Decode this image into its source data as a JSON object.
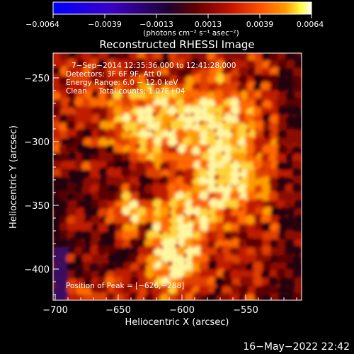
{
  "colorbar": {
    "ticks": [
      "−0.0064",
      "−0.0039",
      "−0.0013",
      "0.0013",
      "0.0039",
      "0.0064"
    ],
    "unit_label": "(photons cm⁻² s⁻¹ asec⁻²)",
    "colors": [
      "#0000ff",
      "#3a00c8",
      "#200030",
      "#600000",
      "#c01000",
      "#ff5000",
      "#ff9a00",
      "#ffff40",
      "#ffffff"
    ]
  },
  "image": {
    "title": "Reconstructed RHESSI Image",
    "info_lines": [
      "7−Sep−2014 12:35:36.000 to 12:41:28.000",
      "Detectors: 3F 6F 9F, Att 0",
      "Energy Range: 6.0 − 12.0 keV",
      "Clean     Total counts: 1.07E+04"
    ],
    "peak_text": "Position of Peak = [−626,−288]"
  },
  "axes": {
    "xlabel": "Heliocentric X (arcsec)",
    "ylabel": "Heliocentric Y (arcsec)",
    "xticks": [
      "−700",
      "−650",
      "−600",
      "−550"
    ],
    "yticks": [
      "−250",
      "−300",
      "−350",
      "−400"
    ]
  },
  "timestamp": "16−May−2022 22:42"
}
